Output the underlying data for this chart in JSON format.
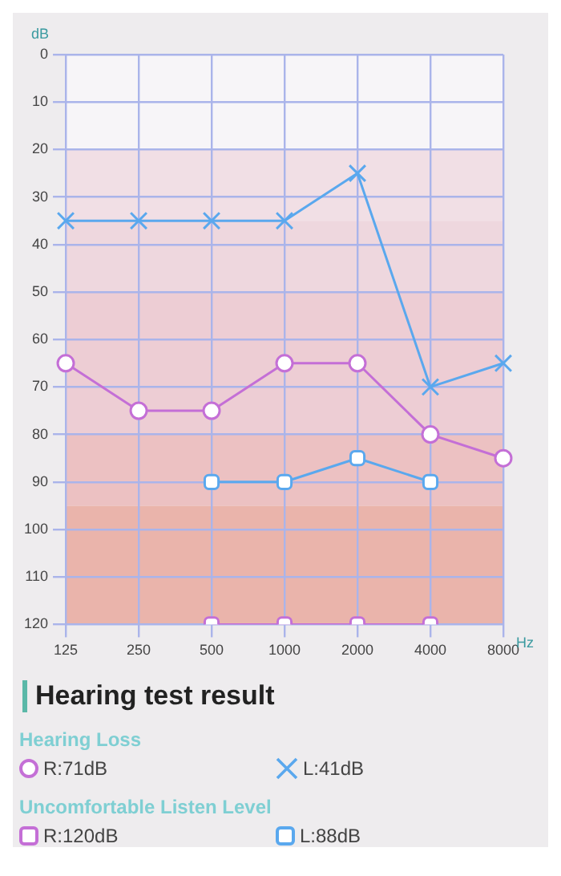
{
  "chart_data": {
    "type": "line",
    "title": "Hearing test result",
    "xlabel": "Hz",
    "ylabel": "dB",
    "categories": [
      "125",
      "250",
      "500",
      "1000",
      "2000",
      "4000",
      "8000"
    ],
    "ylim": [
      120,
      0
    ],
    "yticks": [
      0,
      10,
      20,
      30,
      40,
      50,
      60,
      70,
      80,
      90,
      100,
      110,
      120
    ],
    "grid": true,
    "legend": "bottom",
    "annotations": [
      "Hearing Loss",
      "Uncomfortable Listen Level"
    ],
    "bands": [
      {
        "axis": "y",
        "from": 20,
        "to": 35,
        "color": "#f1dfe5"
      },
      {
        "axis": "y",
        "from": 35,
        "to": 50,
        "color": "#eed7de"
      },
      {
        "axis": "y",
        "from": 50,
        "to": 80,
        "color": "#edcdd4"
      },
      {
        "axis": "y",
        "from": 80,
        "to": 95,
        "color": "#ecc1c2"
      },
      {
        "axis": "y",
        "from": 95,
        "to": 120,
        "color": "#eab4ab"
      }
    ],
    "series": [
      {
        "name": "R:71dB",
        "color": "#c46fd6",
        "marker": "circle",
        "values": [
          65,
          75,
          75,
          65,
          65,
          80,
          85
        ]
      },
      {
        "name": "L:41dB",
        "color": "#5aa8ee",
        "marker": "cross",
        "values": [
          35,
          35,
          35,
          35,
          25,
          70,
          65
        ]
      },
      {
        "name": "R:120dB",
        "color": "#c46fd6",
        "marker": "square",
        "values": [
          null,
          null,
          120,
          120,
          120,
          120,
          null
        ]
      },
      {
        "name": "L:88dB",
        "color": "#5aa8ee",
        "marker": "square",
        "values": [
          null,
          null,
          90,
          90,
          85,
          90,
          null
        ]
      }
    ]
  }
}
